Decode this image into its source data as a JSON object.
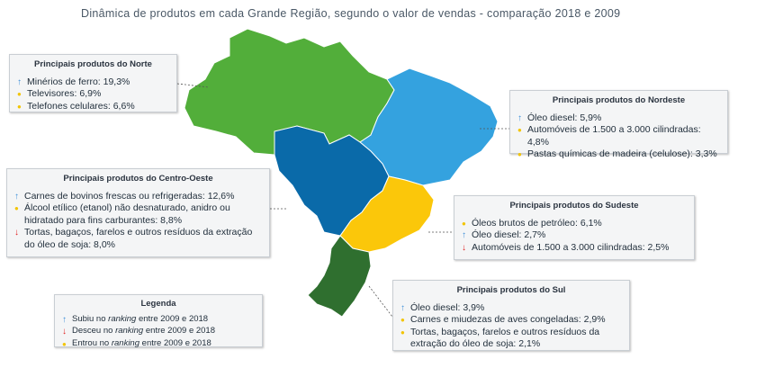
{
  "title": "Dinâmica de produtos em cada Grande Região, segundo o valor de vendas  - comparação 2018 e 2009",
  "colors": {
    "norte": "#52ae3a",
    "nordeste": "#34a2df",
    "centro_oeste": "#0a6aa9",
    "sudeste": "#fbc70a",
    "sul": "#2f6f2f",
    "up": "#3f8fd8",
    "down": "#e02020",
    "new": "#f2c400"
  },
  "regions": {
    "norte": {
      "title": "Principais produtos do Norte",
      "items": [
        {
          "marker": "up",
          "text": "Minérios de ferro:  19,3%"
        },
        {
          "marker": "new",
          "text": "Televisores: 6,9%"
        },
        {
          "marker": "new",
          "text": "Telefones celulares: 6,6%"
        }
      ]
    },
    "nordeste": {
      "title": "Principais produtos do Nordeste",
      "items": [
        {
          "marker": "up",
          "text": "Óleo diesel: 5,9%"
        },
        {
          "marker": "new",
          "text": "Automóveis de 1.500  a 3.000 cilindradas: 4,8%"
        },
        {
          "marker": "new",
          "text": "Pastas químicas de madeira (celulose):  3,3%"
        }
      ]
    },
    "centro_oeste": {
      "title": "Principais produtos do Centro-Oeste",
      "items": [
        {
          "marker": "up",
          "text": "Carnes de bovinos frescas ou refrigeradas: 12,6%"
        },
        {
          "marker": "new",
          "text": "Álcool etílico (etanol) não desnaturado, anidro ou hidratado para fins carburantes: 8,8%"
        },
        {
          "marker": "down",
          "text": "Tortas, bagaços, farelos e outros resíduos da extração do óleo de soja: 8,0%"
        }
      ]
    },
    "sudeste": {
      "title": "Principais produtos do Sudeste",
      "items": [
        {
          "marker": "new",
          "text": "Óleos brutos de petróleo: 6,1%"
        },
        {
          "marker": "up",
          "text": "Óleo diesel:  2,7%"
        },
        {
          "marker": "down",
          "text": "Automóveis de 1.500  a 3.000 cilindradas: 2,5%"
        }
      ]
    },
    "sul": {
      "title": "Principais produtos do Sul",
      "items": [
        {
          "marker": "up",
          "text": "Óleo diesel: 3,9%"
        },
        {
          "marker": "new",
          "text": "Carnes e miudezas de aves congeladas: 2,9%"
        },
        {
          "marker": "new",
          "text": "Tortas, bagaços, farelos e outros resíduos da extração do óleo de soja: 2,1%"
        }
      ]
    }
  },
  "legend": {
    "title": "Legenda",
    "items": [
      {
        "marker": "up",
        "pre": "Subiu no ",
        "em": "ranking",
        "post": " entre 2009 e 2018"
      },
      {
        "marker": "down",
        "pre": "Desceu no ",
        "em": "ranking",
        "post": " entre 2009 e 2018"
      },
      {
        "marker": "new",
        "pre": "Entrou no ",
        "em": "ranking",
        "post": " entre 2009 e 2018"
      }
    ]
  }
}
